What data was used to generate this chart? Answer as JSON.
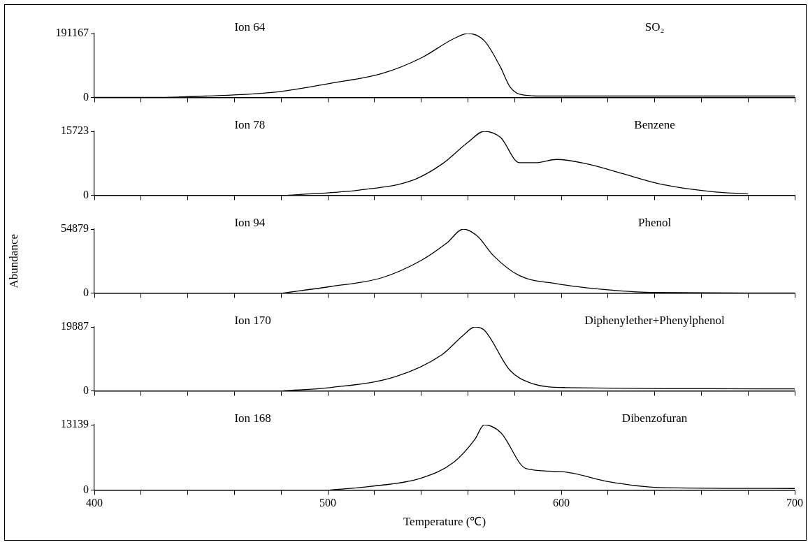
{
  "chart_data": [
    {
      "type": "line",
      "title": "Ion 64",
      "tick_labels": "y",
      "xlim": [
        400,
        700
      ],
      "xticks": [
        400,
        420,
        440,
        460,
        480,
        500,
        520,
        540,
        560,
        580,
        600,
        620,
        640,
        660,
        680,
        700
      ],
      "ylim": [
        0,
        191167
      ],
      "yticks": [
        0,
        191167
      ],
      "marker": "none",
      "legend": false,
      "series": [
        {
          "name": "SO₂",
          "color": "#000000",
          "x": [
            400,
            425,
            448,
            479,
            501,
            523,
            540,
            554,
            560,
            567,
            574,
            578,
            582,
            591,
            700
          ],
          "values": [
            0,
            0,
            4000,
            17000,
            42000,
            71000,
            118000,
            176000,
            191167,
            170000,
            90000,
            32000,
            10000,
            4000,
            4000
          ]
        }
      ]
    },
    {
      "type": "line",
      "title": "Ion 78",
      "tick_labels": "y",
      "xlim": [
        400,
        700
      ],
      "xticks": [
        400,
        420,
        440,
        460,
        480,
        500,
        520,
        540,
        560,
        580,
        600,
        620,
        640,
        660,
        680,
        700
      ],
      "ylim": [
        0,
        15723
      ],
      "yticks": [
        0,
        15723
      ],
      "marker": "none",
      "legend": false,
      "series": [
        {
          "name": "Benzene",
          "color": "#000000",
          "x": [
            483,
            514,
            536,
            549,
            560,
            567,
            574,
            582,
            589,
            598,
            611,
            624,
            642,
            664,
            680
          ],
          "values": [
            0,
            1300,
            3600,
            7700,
            13000,
            15723,
            14200,
            8000,
            8000,
            8800,
            7700,
            5700,
            2800,
            900,
            300
          ]
        }
      ]
    },
    {
      "type": "line",
      "title": "Ion 94",
      "ylabel": "Abundance",
      "tick_labels": "y",
      "xlim": [
        400,
        700
      ],
      "xticks": [
        400,
        420,
        440,
        460,
        480,
        500,
        520,
        540,
        560,
        580,
        600,
        620,
        640,
        660,
        680,
        700
      ],
      "ylim": [
        0,
        54879
      ],
      "yticks": [
        0,
        54879
      ],
      "marker": "none",
      "legend": false,
      "series": [
        {
          "name": "Phenol",
          "color": "#000000",
          "x": [
            481,
            501,
            523,
            540,
            551,
            558,
            564,
            571,
            582,
            598,
            620,
            638,
            700
          ],
          "values": [
            0,
            5500,
            13000,
            28000,
            43000,
            54879,
            49000,
            32000,
            15000,
            8000,
            2700,
            500,
            0
          ]
        }
      ]
    },
    {
      "type": "line",
      "title": "Ion 170",
      "tick_labels": "y",
      "xlim": [
        400,
        700
      ],
      "xticks": [
        400,
        420,
        440,
        460,
        480,
        500,
        520,
        540,
        560,
        580,
        600,
        620,
        640,
        660,
        680,
        700
      ],
      "ylim": [
        0,
        19887
      ],
      "yticks": [
        0,
        19887
      ],
      "marker": "none",
      "legend": false,
      "series": [
        {
          "name": "Diphenylether+Phenylphenol",
          "color": "#000000",
          "x": [
            481,
            501,
            529,
            549,
            558,
            563,
            567,
            578,
            587,
            602,
            700
          ],
          "values": [
            0,
            1000,
            4400,
            11300,
            17300,
            19887,
            18900,
            6400,
            2400,
            1000,
            600
          ]
        }
      ]
    },
    {
      "type": "line",
      "title": "Ion 168",
      "xlabel": "Temperature (℃)",
      "xlim": [
        400,
        700
      ],
      "xticks": [
        400,
        {
          "value": 420,
          "label": null
        },
        {
          "value": 440,
          "label": null
        },
        {
          "value": 460,
          "label": null
        },
        {
          "value": 480,
          "label": null
        },
        500,
        {
          "value": 520,
          "label": null
        },
        {
          "value": 540,
          "label": null
        },
        {
          "value": 560,
          "label": null
        },
        {
          "value": 580,
          "label": null
        },
        600,
        {
          "value": 620,
          "label": null
        },
        {
          "value": 640,
          "label": null
        },
        {
          "value": 660,
          "label": null
        },
        {
          "value": 680,
          "label": null
        },
        700
      ],
      "ylim": [
        0,
        13139
      ],
      "yticks": [
        0,
        13139
      ],
      "marker": "none",
      "legend": false,
      "series": [
        {
          "name": "Dibenzofuran",
          "color": "#000000",
          "x": [
            501,
            518,
            540,
            554,
            563,
            567,
            574,
            585,
            600,
            620,
            642,
            700
          ],
          "values": [
            0,
            700,
            2400,
            5600,
            10200,
            13139,
            11600,
            4300,
            3700,
            1700,
            500,
            300
          ]
        }
      ]
    }
  ]
}
